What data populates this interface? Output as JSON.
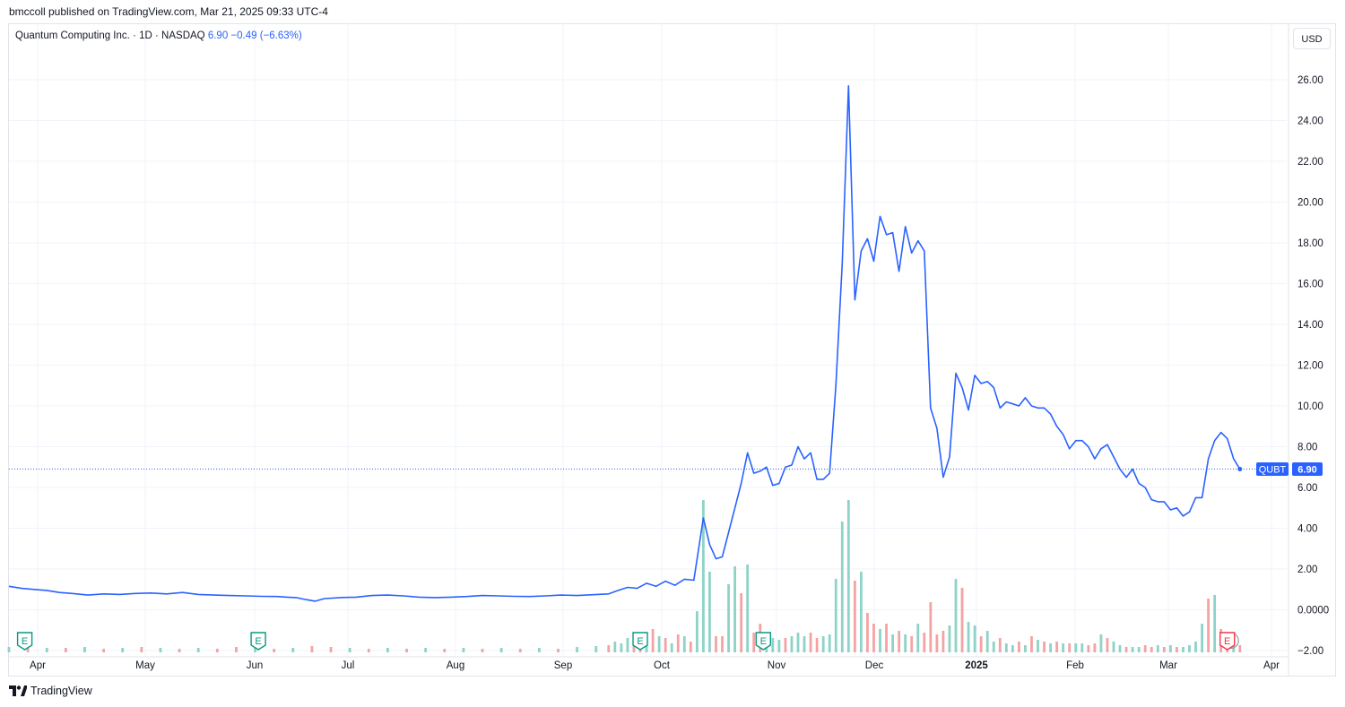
{
  "publisher": "bmccoll published on TradingView.com, Mar 21, 2025 09:33 UTC-4",
  "legend": {
    "name": "Quantum Computing Inc.",
    "sep1": "·",
    "interval": "1D",
    "sep2": "·",
    "exchange": "NASDAQ",
    "last": "6.90",
    "change": "−0.49",
    "change_pct": "(−6.63%)"
  },
  "currency_button": "USD",
  "footer": {
    "brand": "TradingView",
    "icon": "tradingview-logo-icon"
  },
  "colors": {
    "line": "#2962ff",
    "vol_up": "#8dd3c7",
    "vol_down": "#f4a3a3",
    "grid": "#f0f3fa",
    "earnings_green": "#089981",
    "earnings_red": "#f23645"
  },
  "chart_data": {
    "type": "line",
    "symbol": "QUBT",
    "last_price_label": "6.90",
    "y_ticks": [
      "26.00",
      "24.00",
      "22.00",
      "20.00",
      "18.00",
      "16.00",
      "14.00",
      "12.00",
      "10.00",
      "8.00",
      "6.00",
      "4.00",
      "2.00",
      "0.0000",
      "−2.00"
    ],
    "ylim": [
      -2,
      26
    ],
    "x_ticks": [
      "Apr",
      "May",
      "Jun",
      "Jul",
      "Aug",
      "Sep",
      "Oct",
      "Nov",
      "Dec",
      "2025",
      "Feb",
      "Mar",
      "Apr"
    ],
    "grid": true,
    "series": [
      {
        "values": [
          [
            0,
            1.15
          ],
          [
            4,
            1.05
          ],
          [
            8,
            1.0
          ],
          [
            12,
            0.95
          ],
          [
            16,
            0.85
          ],
          [
            20,
            0.8
          ],
          [
            25,
            0.72
          ],
          [
            30,
            0.78
          ],
          [
            35,
            0.75
          ],
          [
            40,
            0.8
          ],
          [
            45,
            0.82
          ],
          [
            50,
            0.78
          ],
          [
            55,
            0.85
          ],
          [
            60,
            0.75
          ],
          [
            65,
            0.72
          ],
          [
            70,
            0.7
          ],
          [
            75,
            0.68
          ],
          [
            80,
            0.66
          ],
          [
            85,
            0.65
          ],
          [
            88,
            0.62
          ],
          [
            91,
            0.6
          ],
          [
            94,
            0.5
          ],
          [
            97,
            0.42
          ],
          [
            100,
            0.55
          ],
          [
            105,
            0.6
          ],
          [
            110,
            0.62
          ],
          [
            115,
            0.7
          ],
          [
            120,
            0.72
          ],
          [
            125,
            0.68
          ],
          [
            130,
            0.62
          ],
          [
            135,
            0.6
          ],
          [
            140,
            0.62
          ],
          [
            145,
            0.65
          ],
          [
            150,
            0.7
          ],
          [
            155,
            0.68
          ],
          [
            160,
            0.66
          ],
          [
            165,
            0.65
          ],
          [
            170,
            0.68
          ],
          [
            175,
            0.72
          ],
          [
            180,
            0.7
          ],
          [
            185,
            0.74
          ],
          [
            190,
            0.78
          ],
          [
            193,
            0.95
          ],
          [
            196,
            1.1
          ],
          [
            199,
            1.05
          ],
          [
            202,
            1.3
          ],
          [
            205,
            1.15
          ],
          [
            208,
            1.4
          ],
          [
            211,
            1.2
          ],
          [
            214,
            1.5
          ],
          [
            217,
            1.45
          ],
          [
            220,
            4.5
          ],
          [
            222,
            3.2
          ],
          [
            224,
            2.5
          ],
          [
            226,
            2.6
          ],
          [
            228,
            3.8
          ],
          [
            230,
            5.0
          ],
          [
            232,
            6.2
          ],
          [
            234,
            7.7
          ],
          [
            236,
            6.7
          ],
          [
            238,
            6.8
          ],
          [
            240,
            7.0
          ],
          [
            242,
            6.1
          ],
          [
            244,
            6.2
          ],
          [
            246,
            7.0
          ],
          [
            248,
            7.1
          ],
          [
            250,
            8.0
          ],
          [
            252,
            7.4
          ],
          [
            254,
            7.7
          ],
          [
            256,
            6.4
          ],
          [
            258,
            6.4
          ],
          [
            260,
            6.7
          ],
          [
            262,
            11.0
          ],
          [
            264,
            17.0
          ],
          [
            266,
            25.7
          ],
          [
            268,
            15.2
          ],
          [
            270,
            17.6
          ],
          [
            272,
            18.2
          ],
          [
            274,
            17.1
          ],
          [
            276,
            19.3
          ],
          [
            278,
            18.4
          ],
          [
            280,
            18.5
          ],
          [
            282,
            16.6
          ],
          [
            284,
            18.8
          ],
          [
            286,
            17.5
          ],
          [
            288,
            18.1
          ],
          [
            290,
            17.6
          ],
          [
            292,
            9.9
          ],
          [
            294,
            8.9
          ],
          [
            296,
            6.5
          ],
          [
            298,
            7.5
          ],
          [
            300,
            11.6
          ],
          [
            302,
            10.9
          ],
          [
            304,
            9.8
          ],
          [
            306,
            11.5
          ],
          [
            308,
            11.1
          ],
          [
            310,
            11.2
          ],
          [
            312,
            10.9
          ],
          [
            314,
            9.9
          ],
          [
            316,
            10.2
          ],
          [
            318,
            10.1
          ],
          [
            320,
            10.0
          ],
          [
            322,
            10.4
          ],
          [
            324,
            10.0
          ],
          [
            326,
            9.9
          ],
          [
            328,
            9.9
          ],
          [
            330,
            9.6
          ],
          [
            332,
            9.0
          ],
          [
            334,
            8.6
          ],
          [
            336,
            7.9
          ],
          [
            338,
            8.3
          ],
          [
            340,
            8.3
          ],
          [
            342,
            8.0
          ],
          [
            344,
            7.4
          ],
          [
            346,
            7.9
          ],
          [
            348,
            8.1
          ],
          [
            350,
            7.5
          ],
          [
            352,
            6.9
          ],
          [
            354,
            6.5
          ],
          [
            356,
            6.9
          ],
          [
            358,
            6.2
          ],
          [
            360,
            6.0
          ],
          [
            362,
            5.4
          ],
          [
            364,
            5.3
          ],
          [
            366,
            5.3
          ],
          [
            368,
            4.9
          ],
          [
            370,
            5.0
          ],
          [
            372,
            4.6
          ],
          [
            374,
            4.8
          ],
          [
            376,
            5.5
          ],
          [
            378,
            5.5
          ],
          [
            380,
            7.4
          ],
          [
            382,
            8.3
          ],
          [
            384,
            8.7
          ],
          [
            386,
            8.4
          ],
          [
            388,
            7.4
          ],
          [
            390,
            6.9
          ]
        ]
      }
    ],
    "volume": {
      "values": [
        [
          0,
          0.3,
          1
        ],
        [
          6,
          0.3,
          0
        ],
        [
          12,
          0.25,
          1
        ],
        [
          18,
          0.25,
          0
        ],
        [
          24,
          0.3,
          1
        ],
        [
          30,
          0.2,
          0
        ],
        [
          36,
          0.25,
          1
        ],
        [
          42,
          0.3,
          0
        ],
        [
          48,
          0.25,
          1
        ],
        [
          54,
          0.2,
          0
        ],
        [
          60,
          0.25,
          1
        ],
        [
          66,
          0.2,
          0
        ],
        [
          72,
          0.3,
          0
        ],
        [
          78,
          0.25,
          1
        ],
        [
          84,
          0.2,
          0
        ],
        [
          90,
          0.25,
          1
        ],
        [
          96,
          0.35,
          0
        ],
        [
          102,
          0.3,
          0
        ],
        [
          108,
          0.25,
          1
        ],
        [
          114,
          0.2,
          0
        ],
        [
          120,
          0.25,
          1
        ],
        [
          126,
          0.2,
          0
        ],
        [
          132,
          0.25,
          1
        ],
        [
          138,
          0.2,
          0
        ],
        [
          144,
          0.25,
          1
        ],
        [
          150,
          0.2,
          0
        ],
        [
          156,
          0.25,
          1
        ],
        [
          162,
          0.2,
          0
        ],
        [
          168,
          0.25,
          1
        ],
        [
          174,
          0.2,
          0
        ],
        [
          180,
          0.3,
          1
        ],
        [
          186,
          0.35,
          1
        ],
        [
          190,
          0.4,
          0
        ],
        [
          192,
          0.6,
          1
        ],
        [
          194,
          0.5,
          1
        ],
        [
          196,
          0.8,
          1
        ],
        [
          198,
          0.5,
          0
        ],
        [
          200,
          0.9,
          0
        ],
        [
          202,
          0.6,
          1
        ],
        [
          204,
          1.3,
          0
        ],
        [
          206,
          0.9,
          1
        ],
        [
          208,
          0.8,
          0
        ],
        [
          210,
          0.5,
          1
        ],
        [
          212,
          1.0,
          0
        ],
        [
          214,
          0.9,
          1
        ],
        [
          216,
          0.6,
          0
        ],
        [
          218,
          2.3,
          1
        ],
        [
          220,
          8.5,
          1
        ],
        [
          222,
          4.5,
          1
        ],
        [
          224,
          0.9,
          0
        ],
        [
          226,
          0.9,
          0
        ],
        [
          228,
          3.8,
          1
        ],
        [
          230,
          4.8,
          1
        ],
        [
          232,
          3.3,
          0
        ],
        [
          234,
          4.9,
          1
        ],
        [
          236,
          1.1,
          0
        ],
        [
          238,
          1.6,
          0
        ],
        [
          240,
          0.9,
          1
        ],
        [
          242,
          0.8,
          1
        ],
        [
          244,
          0.7,
          1
        ],
        [
          246,
          0.8,
          0
        ],
        [
          248,
          0.9,
          1
        ],
        [
          250,
          1.1,
          1
        ],
        [
          252,
          0.9,
          1
        ],
        [
          254,
          1.1,
          0
        ],
        [
          256,
          0.8,
          0
        ],
        [
          258,
          0.9,
          1
        ],
        [
          260,
          1.0,
          1
        ],
        [
          262,
          4.1,
          1
        ],
        [
          264,
          7.3,
          1
        ],
        [
          266,
          8.5,
          1
        ],
        [
          268,
          4.0,
          0
        ],
        [
          270,
          4.5,
          1
        ],
        [
          272,
          2.2,
          0
        ],
        [
          274,
          1.6,
          0
        ],
        [
          276,
          1.3,
          1
        ],
        [
          278,
          1.6,
          0
        ],
        [
          280,
          1.0,
          1
        ],
        [
          282,
          1.2,
          0
        ],
        [
          284,
          1.0,
          1
        ],
        [
          286,
          0.9,
          0
        ],
        [
          288,
          1.6,
          1
        ],
        [
          290,
          1.1,
          0
        ],
        [
          292,
          2.8,
          0
        ],
        [
          294,
          1.0,
          0
        ],
        [
          296,
          1.2,
          0
        ],
        [
          298,
          1.5,
          1
        ],
        [
          300,
          4.1,
          1
        ],
        [
          302,
          3.6,
          0
        ],
        [
          304,
          1.7,
          1
        ],
        [
          306,
          1.5,
          1
        ],
        [
          308,
          0.9,
          0
        ],
        [
          310,
          1.2,
          1
        ],
        [
          312,
          0.6,
          1
        ],
        [
          314,
          0.8,
          0
        ],
        [
          316,
          0.5,
          1
        ],
        [
          318,
          0.4,
          1
        ],
        [
          320,
          0.6,
          0
        ],
        [
          322,
          0.4,
          1
        ],
        [
          324,
          0.9,
          0
        ],
        [
          326,
          0.7,
          1
        ],
        [
          328,
          0.6,
          0
        ],
        [
          330,
          0.5,
          1
        ],
        [
          332,
          0.6,
          0
        ],
        [
          334,
          0.5,
          1
        ],
        [
          336,
          0.5,
          0
        ],
        [
          338,
          0.5,
          1
        ],
        [
          340,
          0.5,
          1
        ],
        [
          342,
          0.4,
          0
        ],
        [
          344,
          0.5,
          0
        ],
        [
          346,
          1.0,
          1
        ],
        [
          348,
          0.8,
          0
        ],
        [
          350,
          0.6,
          1
        ],
        [
          352,
          0.4,
          1
        ],
        [
          354,
          0.3,
          0
        ],
        [
          356,
          0.3,
          1
        ],
        [
          358,
          0.3,
          1
        ],
        [
          360,
          0.4,
          0
        ],
        [
          362,
          0.3,
          0
        ],
        [
          364,
          0.4,
          1
        ],
        [
          366,
          0.3,
          0
        ],
        [
          368,
          0.4,
          1
        ],
        [
          370,
          0.3,
          0
        ],
        [
          372,
          0.3,
          1
        ],
        [
          374,
          0.4,
          1
        ],
        [
          376,
          0.6,
          1
        ],
        [
          378,
          1.6,
          1
        ],
        [
          380,
          3.0,
          0
        ],
        [
          382,
          3.2,
          1
        ],
        [
          384,
          1.3,
          0
        ],
        [
          386,
          1.1,
          0
        ],
        [
          388,
          0.5,
          1
        ],
        [
          390,
          0.4,
          0
        ]
      ]
    },
    "earnings_markers": [
      {
        "x": 5,
        "label": "E",
        "status": "past"
      },
      {
        "x": 79,
        "label": "E",
        "status": "past"
      },
      {
        "x": 200,
        "label": "E",
        "status": "past"
      },
      {
        "x": 239,
        "label": "E",
        "status": "past"
      },
      {
        "x": 386,
        "label": "E",
        "status": "upcoming"
      }
    ]
  }
}
